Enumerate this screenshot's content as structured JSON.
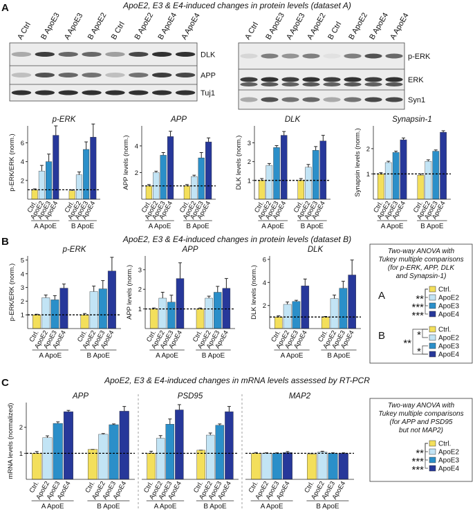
{
  "panels": [
    {
      "letter": "A",
      "title": "ApoE2, E3 & E4-induced changes in protein levels (dataset A)"
    },
    {
      "letter": "B",
      "title": "ApoE2, E3 & E4-induced changes in protein levels (dataset B)"
    },
    {
      "letter": "C",
      "title": "ApoE2, E3 & E4-induced changes in mRNA levels assessed by RT-PCR"
    }
  ],
  "blots": [
    {
      "lanes": [
        "A Ctrl",
        "B ApoE3",
        "A ApoE3",
        "B ApoE2",
        "B Ctrl",
        "B ApoE2",
        "B ApoE4",
        "A ApoE4"
      ],
      "rows": [
        "DLK",
        "APP",
        "Tuj1"
      ]
    },
    {
      "lanes": [
        "A Ctrl",
        "B ApoE3",
        "A ApoE3",
        "A ApoE2",
        "B Ctrl",
        "B ApoE2",
        "B ApoE4",
        "A ApoE4"
      ],
      "rows": [
        "p-ERK",
        "ERK",
        "Syn1"
      ]
    }
  ],
  "chart_data": [
    {
      "type": "bar",
      "title": "p-ERK",
      "ylabel": "p-ERK/ERK (norm.)",
      "categories": [
        "Ctrl.",
        "ApoE2",
        "ApoE3",
        "ApoE4",
        "Ctrl.",
        "ApoE2",
        "ApoE3",
        "ApoE4"
      ],
      "groups": [
        "A ApoE",
        "B ApoE"
      ],
      "colors": [
        "#f3df5b",
        "#c2e4f5",
        "#2b8fc9",
        "#27389a"
      ],
      "values": [
        1.0,
        3.0,
        4.0,
        6.8,
        0.9,
        2.6,
        5.3,
        6.6
      ],
      "errors": [
        0.1,
        0.6,
        0.8,
        1.0,
        0.1,
        0.3,
        0.8,
        1.4
      ],
      "ylim": [
        0,
        7.8
      ],
      "yticks": [
        2,
        4,
        6
      ],
      "reference_line": 1
    },
    {
      "type": "bar",
      "title": "APP",
      "ylabel": "APP levels (norm.)",
      "categories": [
        "Ctrl.",
        "ApoE2",
        "ApoE3",
        "ApoE4",
        "Ctrl.",
        "ApoE2",
        "ApoE3",
        "ApoE4"
      ],
      "groups": [
        "A ApoE",
        "B ApoE"
      ],
      "colors": [
        "#f3df5b",
        "#c2e4f5",
        "#2b8fc9",
        "#27389a"
      ],
      "values": [
        1.0,
        2.0,
        3.3,
        4.7,
        1.0,
        1.7,
        3.1,
        4.3
      ],
      "errors": [
        0.1,
        0.1,
        0.2,
        0.4,
        0.1,
        0.1,
        0.4,
        0.3
      ],
      "ylim": [
        0,
        5.5
      ],
      "yticks": [
        2,
        4
      ],
      "reference_line": 1
    },
    {
      "type": "bar",
      "title": "DLK",
      "ylabel": "DLK levels (norm.)",
      "categories": [
        "Ctrl.",
        "ApoE2",
        "ApoE3",
        "ApoE4",
        "Ctrl.",
        "ApoE2",
        "ApoE3",
        "ApoE4"
      ],
      "groups": [
        "A ApoE",
        "B ApoE"
      ],
      "colors": [
        "#f3df5b",
        "#c2e4f5",
        "#2b8fc9",
        "#27389a"
      ],
      "values": [
        1.0,
        1.8,
        2.75,
        3.4,
        1.0,
        1.7,
        2.6,
        3.1
      ],
      "errors": [
        0.1,
        0.1,
        0.1,
        0.2,
        0.1,
        0.15,
        0.2,
        0.3
      ],
      "ylim": [
        0,
        3.9
      ],
      "yticks": [
        1,
        2,
        3
      ],
      "reference_line": 1
    },
    {
      "type": "bar",
      "title": "Synapsin-1",
      "ylabel": "Synapsin levels (norm.)",
      "categories": [
        "Ctrl.",
        "ApoE2",
        "ApoE3",
        "ApoE4",
        "Ctrl.",
        "ApoE2",
        "ApoE3",
        "ApoE4"
      ],
      "groups": [
        "A ApoE",
        "B ApoE"
      ],
      "colors": [
        "#f3df5b",
        "#c2e4f5",
        "#2b8fc9",
        "#27389a"
      ],
      "values": [
        1.0,
        1.45,
        1.85,
        2.35,
        0.95,
        1.5,
        1.9,
        2.65
      ],
      "errors": [
        0.05,
        0.05,
        0.05,
        0.07,
        0.05,
        0.06,
        0.05,
        0.06
      ],
      "ylim": [
        0,
        2.9
      ],
      "yticks": [
        1,
        2
      ],
      "reference_line": 1
    },
    {
      "type": "bar",
      "title": "p-ERK",
      "ylabel": "p-ERK/ERK (norm.)",
      "categories": [
        "Ctrl.",
        "ApoE2",
        "ApoE3",
        "ApoE4",
        "Ctrl.",
        "ApoE2",
        "ApoE3",
        "ApoE4"
      ],
      "groups": [
        "A ApoE",
        "B ApoE"
      ],
      "colors": [
        "#f3df5b",
        "#c2e4f5",
        "#2b8fc9",
        "#27389a"
      ],
      "values": [
        1.0,
        2.25,
        2.1,
        2.95,
        1.0,
        2.7,
        2.9,
        4.2
      ],
      "errors": [
        0.05,
        0.2,
        0.3,
        0.3,
        0.1,
        0.4,
        0.6,
        1.0
      ],
      "ylim": [
        0,
        5.3
      ],
      "yticks": [
        1,
        2,
        3,
        4,
        5
      ],
      "reference_line": 1
    },
    {
      "type": "bar",
      "title": "APP",
      "ylabel": "APP levels (norm.)",
      "categories": [
        "Ctrl.",
        "ApoE2",
        "ApoE3",
        "ApoE4",
        "Ctrl.",
        "ApoE2",
        "ApoE3",
        "ApoE4"
      ],
      "groups": [
        "A ApoE",
        "B ApoE"
      ],
      "colors": [
        "#f3df5b",
        "#c2e4f5",
        "#2b8fc9",
        "#27389a"
      ],
      "values": [
        1.0,
        1.55,
        1.35,
        2.55,
        1.0,
        1.55,
        1.85,
        2.05
      ],
      "errors": [
        0.05,
        0.3,
        0.35,
        0.8,
        0.05,
        0.1,
        0.3,
        0.5
      ],
      "ylim": [
        0,
        3.7
      ],
      "yticks": [
        1,
        2,
        3
      ],
      "reference_line": 1
    },
    {
      "type": "bar",
      "title": "DLK",
      "ylabel": "DLK levels (norm.)",
      "categories": [
        "Ctrl.",
        "ApoE2",
        "ApoE3",
        "ApoE4",
        "Ctrl.",
        "ApoE2",
        "ApoE3",
        "ApoE4"
      ],
      "groups": [
        "A ApoE",
        "B ApoE"
      ],
      "colors": [
        "#f3df5b",
        "#c2e4f5",
        "#2b8fc9",
        "#27389a"
      ],
      "values": [
        1.0,
        2.1,
        2.35,
        3.7,
        1.0,
        2.6,
        3.5,
        4.65
      ],
      "errors": [
        0.1,
        0.2,
        0.1,
        0.6,
        0.05,
        0.3,
        0.6,
        1.3
      ],
      "ylim": [
        0,
        6.3
      ],
      "yticks": [
        2,
        4,
        6
      ],
      "reference_line": 1
    },
    {
      "type": "multibar",
      "ylabel": "mRNA levels (normalized)",
      "categories": [
        "Ctrl.",
        "ApoE2",
        "ApoE3",
        "ApoE4",
        "Ctrl.",
        "ApoE2",
        "ApoE3",
        "ApoE4"
      ],
      "groups": [
        "A ApoE",
        "B ApoE"
      ],
      "colors": [
        "#f3df5b",
        "#c2e4f5",
        "#2b8fc9",
        "#27389a"
      ],
      "ylim": [
        0,
        2.95
      ],
      "yticks": [
        1,
        2
      ],
      "reference_line": 1,
      "panels": [
        {
          "title": "APP",
          "values": [
            1.0,
            1.6,
            2.15,
            2.6,
            1.15,
            1.73,
            2.1,
            2.62
          ],
          "errors": [
            0.07,
            0.07,
            0.06,
            0.05,
            0,
            0.03,
            0.03,
            0.18
          ]
        },
        {
          "title": "PSD95",
          "values": [
            1.0,
            1.58,
            2.12,
            2.67,
            1.12,
            1.7,
            2.08,
            2.6
          ],
          "errors": [
            0.08,
            0.1,
            0.2,
            0.2,
            0,
            0.08,
            0.05,
            0.2
          ]
        },
        {
          "title": "MAP2",
          "values": [
            1.0,
            1.0,
            1.0,
            1.03,
            0.97,
            1.05,
            1.0,
            1.0
          ],
          "errors": [
            0.03,
            0.02,
            0.02,
            0.04,
            0.03,
            0.03,
            0.02,
            0.02
          ]
        }
      ]
    }
  ],
  "stats": [
    {
      "lines": [
        "Two-way ANOVA with",
        "Tukey multiple comparisons",
        "(for p-ERK, APP, DLK",
        "and Synapsin-1)"
      ],
      "sets": [
        {
          "label": "A",
          "legend": [
            "Ctrl.",
            "ApoE2",
            "ApoE3",
            "ApoE4"
          ],
          "stars": [
            "**",
            "***",
            "***"
          ]
        },
        {
          "label": "B",
          "legend": [
            "Ctrl.",
            "ApoE2",
            "ApoE3",
            "ApoE4"
          ],
          "stars": [
            "**",
            "*",
            "*"
          ]
        }
      ]
    },
    {
      "lines": [
        "Two-way ANOVA with",
        "Tukey multiple comparisons",
        "(for APP and PSD95",
        "but not MAP2)"
      ],
      "sets": [
        {
          "legend": [
            "Ctrl.",
            "ApoE2",
            "ApoE3",
            "ApoE4"
          ],
          "stars": [
            "**",
            "***",
            "***"
          ]
        }
      ]
    }
  ]
}
